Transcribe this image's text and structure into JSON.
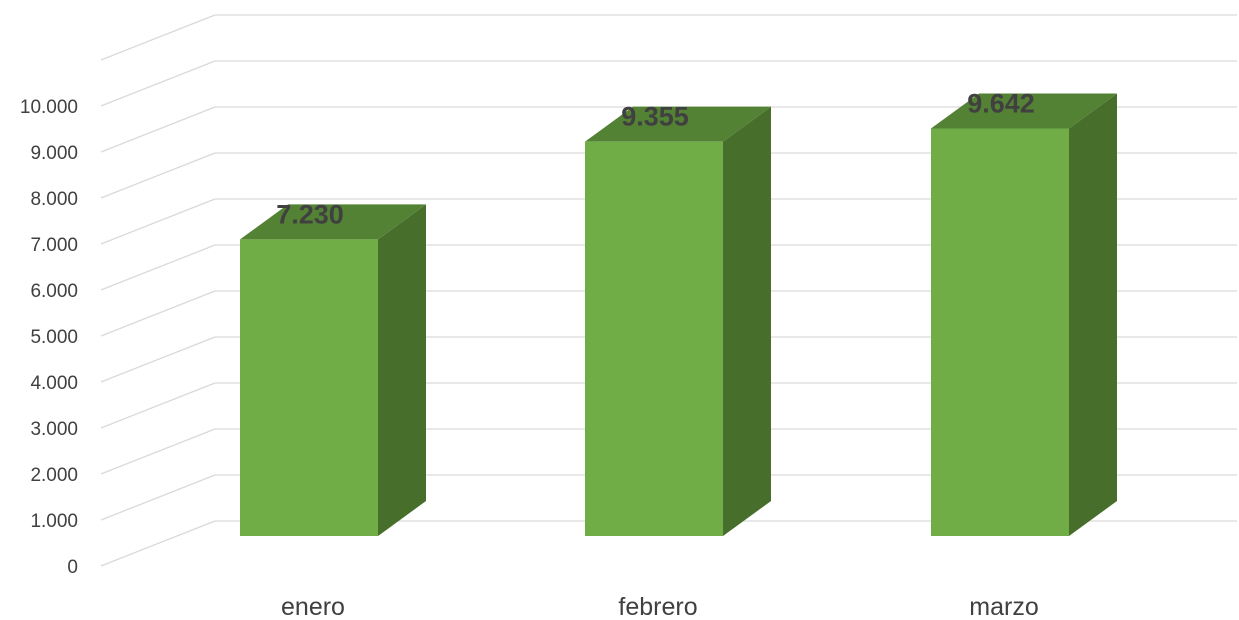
{
  "chart_data": {
    "type": "bar",
    "style": "3d-column",
    "categories": [
      "enero",
      "febrero",
      "marzo"
    ],
    "values": [
      7230,
      9355,
      9642
    ],
    "value_labels": [
      "7.230",
      "9.355",
      "9.642"
    ],
    "yticks": [
      "0",
      "1.000",
      "2.000",
      "3.000",
      "4.000",
      "5.000",
      "6.000",
      "7.000",
      "8.000",
      "9.000",
      "10.000"
    ],
    "ylim": [
      0,
      11000
    ],
    "grid": true,
    "legend": "none",
    "colors": {
      "front": "#70ad47",
      "top": "#548235",
      "side": "#476e2b",
      "grid": "#d9d9d9",
      "text": "#404040"
    }
  }
}
